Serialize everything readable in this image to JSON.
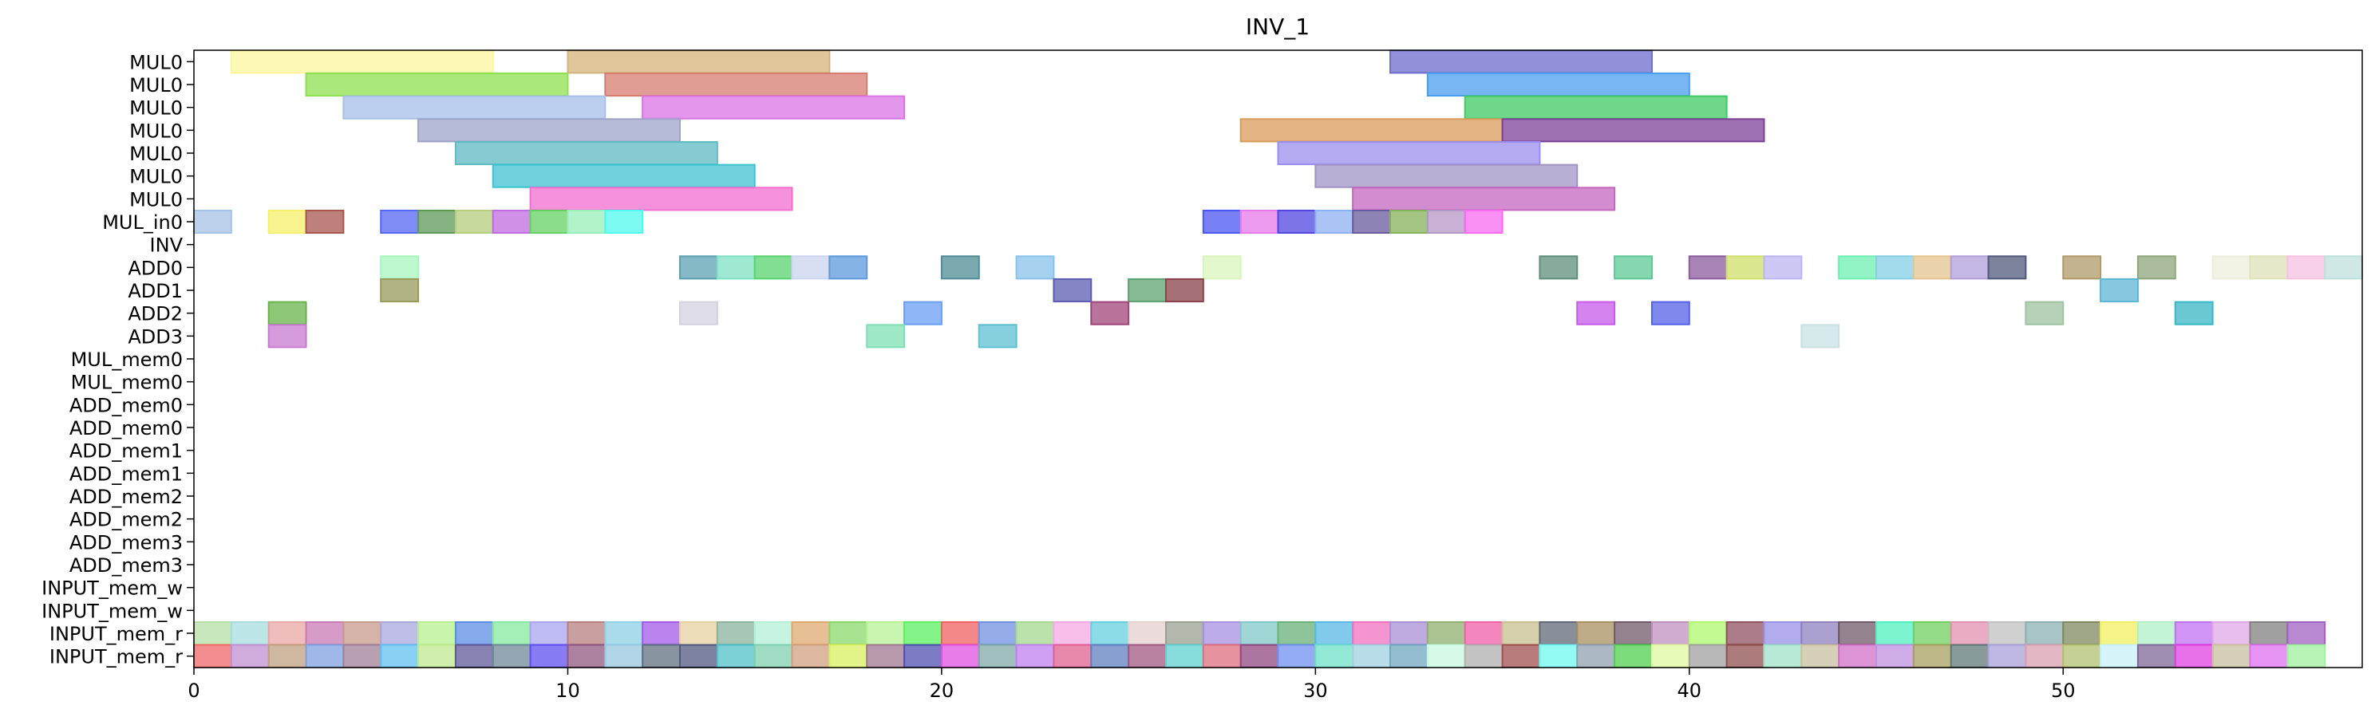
{
  "chart_data": {
    "type": "gantt",
    "title": "INV_1",
    "xlabel": "",
    "ylabel": "",
    "xlim": [
      0,
      58
    ],
    "x_ticks": [
      0,
      10,
      20,
      30,
      40,
      50
    ],
    "grid": false,
    "rows": [
      "MUL0",
      "MUL0",
      "MUL0",
      "MUL0",
      "MUL0",
      "MUL0",
      "MUL0",
      "MUL_in0",
      "INV",
      "ADD0",
      "ADD1",
      "ADD2",
      "ADD3",
      "MUL_mem0",
      "MUL_mem0",
      "ADD_mem0",
      "ADD_mem0",
      "ADD_mem1",
      "ADD_mem1",
      "ADD_mem2",
      "ADD_mem2",
      "ADD_mem3",
      "ADD_mem3",
      "INPUT_mem_w",
      "INPUT_mem_w",
      "INPUT_mem_r",
      "INPUT_mem_r"
    ],
    "tasks": [
      {
        "row": 0,
        "start": 1,
        "end": 8,
        "color": "#fef59e"
      },
      {
        "row": 0,
        "start": 10,
        "end": 17,
        "color": "#d4b37a"
      },
      {
        "row": 0,
        "start": 32,
        "end": 39,
        "color": "#6b6ccc"
      },
      {
        "row": 1,
        "start": 3,
        "end": 10,
        "color": "#8fe04f"
      },
      {
        "row": 1,
        "start": 11,
        "end": 18,
        "color": "#d77b6f"
      },
      {
        "row": 1,
        "start": 33,
        "end": 40,
        "color": "#4a9eee"
      },
      {
        "row": 2,
        "start": 4,
        "end": 11,
        "color": "#a7bfea"
      },
      {
        "row": 2,
        "start": 12,
        "end": 19,
        "color": "#da73e6"
      },
      {
        "row": 2,
        "start": 34,
        "end": 41,
        "color": "#3fca63"
      },
      {
        "row": 3,
        "start": 6,
        "end": 13,
        "color": "#9ea4c9"
      },
      {
        "row": 3,
        "start": 28,
        "end": 35,
        "color": "#d89a5a"
      },
      {
        "row": 3,
        "start": 35,
        "end": 42,
        "color": "#7c4098"
      },
      {
        "row": 4,
        "start": 7,
        "end": 14,
        "color": "#5fbac3"
      },
      {
        "row": 4,
        "start": 29,
        "end": 36,
        "color": "#9b8dee"
      },
      {
        "row": 5,
        "start": 8,
        "end": 15,
        "color": "#3ec1d0"
      },
      {
        "row": 5,
        "start": 30,
        "end": 37,
        "color": "#a193c6"
      },
      {
        "row": 6,
        "start": 9,
        "end": 16,
        "color": "#f36dd0"
      },
      {
        "row": 6,
        "start": 31,
        "end": 38,
        "color": "#c466bf"
      },
      {
        "row": 7,
        "start": 0,
        "end": 1,
        "color": "#a4c2e6"
      },
      {
        "row": 7,
        "start": 2,
        "end": 3,
        "color": "#f7f06a"
      },
      {
        "row": 7,
        "start": 3,
        "end": 4,
        "color": "#a8554f"
      },
      {
        "row": 7,
        "start": 5,
        "end": 6,
        "color": "#5565f3"
      },
      {
        "row": 7,
        "start": 6,
        "end": 7,
        "color": "#5d9857"
      },
      {
        "row": 7,
        "start": 7,
        "end": 8,
        "color": "#b6cc7d"
      },
      {
        "row": 7,
        "start": 8,
        "end": 9,
        "color": "#c06be0"
      },
      {
        "row": 7,
        "start": 9,
        "end": 10,
        "color": "#65d163"
      },
      {
        "row": 7,
        "start": 10,
        "end": 11,
        "color": "#99efb9"
      },
      {
        "row": 7,
        "start": 11,
        "end": 12,
        "color": "#4ff9ee"
      },
      {
        "row": 7,
        "start": 27,
        "end": 28,
        "color": "#4a55f2"
      },
      {
        "row": 7,
        "start": 28,
        "end": 29,
        "color": "#e67ae8"
      },
      {
        "row": 7,
        "start": 29,
        "end": 30,
        "color": "#5045e0"
      },
      {
        "row": 7,
        "start": 30,
        "end": 31,
        "color": "#8eb0f2"
      },
      {
        "row": 7,
        "start": 31,
        "end": 32,
        "color": "#6a5a9e"
      },
      {
        "row": 7,
        "start": 32,
        "end": 33,
        "color": "#86b15a"
      },
      {
        "row": 7,
        "start": 33,
        "end": 34,
        "color": "#b597c6"
      },
      {
        "row": 7,
        "start": 34,
        "end": 35,
        "color": "#f86af0"
      },
      {
        "row": 9,
        "start": 5,
        "end": 6,
        "color": "#a8f5be"
      },
      {
        "row": 9,
        "start": 13,
        "end": 14,
        "color": "#5ba1b1"
      },
      {
        "row": 9,
        "start": 14,
        "end": 15,
        "color": "#7fe1c4"
      },
      {
        "row": 9,
        "start": 15,
        "end": 16,
        "color": "#58d36e"
      },
      {
        "row": 9,
        "start": 16,
        "end": 17,
        "color": "#ccd4ef"
      },
      {
        "row": 9,
        "start": 17,
        "end": 18,
        "color": "#5d9ade"
      },
      {
        "row": 9,
        "start": 20,
        "end": 21,
        "color": "#4f8c96"
      },
      {
        "row": 9,
        "start": 22,
        "end": 23,
        "color": "#88c3ea"
      },
      {
        "row": 9,
        "start": 27,
        "end": 28,
        "color": "#d9f5bb"
      },
      {
        "row": 9,
        "start": 36,
        "end": 37,
        "color": "#5d8f7c"
      },
      {
        "row": 9,
        "start": 38,
        "end": 39,
        "color": "#5ec996"
      },
      {
        "row": 9,
        "start": 40,
        "end": 41,
        "color": "#8b5c9e"
      },
      {
        "row": 9,
        "start": 41,
        "end": 42,
        "color": "#d1df6b"
      },
      {
        "row": 9,
        "start": 42,
        "end": 43,
        "color": "#bcb6f0"
      },
      {
        "row": 9,
        "start": 44,
        "end": 45,
        "color": "#6ef0b2"
      },
      {
        "row": 9,
        "start": 45,
        "end": 46,
        "color": "#86cfe6"
      },
      {
        "row": 9,
        "start": 46,
        "end": 47,
        "color": "#e4c590"
      },
      {
        "row": 9,
        "start": 47,
        "end": 48,
        "color": "#b29fda"
      },
      {
        "row": 9,
        "start": 48,
        "end": 49,
        "color": "#505a7b"
      },
      {
        "row": 9,
        "start": 50,
        "end": 51,
        "color": "#b09a6a"
      },
      {
        "row": 9,
        "start": 52,
        "end": 53,
        "color": "#8fa67c"
      },
      {
        "row": 9,
        "start": 54,
        "end": 55,
        "color": "#eeeedc"
      },
      {
        "row": 9,
        "start": 55,
        "end": 56,
        "color": "#e0e2b8"
      },
      {
        "row": 9,
        "start": 56,
        "end": 57,
        "color": "#f6c2e0"
      },
      {
        "row": 9,
        "start": 57,
        "end": 58,
        "color": "#bfe0dc"
      },
      {
        "row": 10,
        "start": 5,
        "end": 6,
        "color": "#999b5d"
      },
      {
        "row": 10,
        "start": 23,
        "end": 24,
        "color": "#5c5db2"
      },
      {
        "row": 10,
        "start": 25,
        "end": 26,
        "color": "#5ca371"
      },
      {
        "row": 10,
        "start": 26,
        "end": 27,
        "color": "#8a434a"
      },
      {
        "row": 10,
        "start": 51,
        "end": 52,
        "color": "#5db6d6"
      },
      {
        "row": 11,
        "start": 2,
        "end": 3,
        "color": "#67b44a"
      },
      {
        "row": 11,
        "start": 13,
        "end": 14,
        "color": "#d4d1e0"
      },
      {
        "row": 11,
        "start": 19,
        "end": 20,
        "color": "#6a9ef4"
      },
      {
        "row": 11,
        "start": 24,
        "end": 25,
        "color": "#a0457a"
      },
      {
        "row": 11,
        "start": 37,
        "end": 38,
        "color": "#c75ae8"
      },
      {
        "row": 11,
        "start": 39,
        "end": 40,
        "color": "#5460e6"
      },
      {
        "row": 11,
        "start": 49,
        "end": 50,
        "color": "#9fc2a0"
      },
      {
        "row": 11,
        "start": 53,
        "end": 54,
        "color": "#38b7c4"
      },
      {
        "row": 12,
        "start": 2,
        "end": 3,
        "color": "#c87ad0"
      },
      {
        "row": 12,
        "start": 18,
        "end": 19,
        "color": "#7fe0b6"
      },
      {
        "row": 12,
        "start": 21,
        "end": 22,
        "color": "#5ebfd1"
      },
      {
        "row": 12,
        "start": 43,
        "end": 44,
        "color": "#c9e1e3"
      }
    ],
    "row25_colors": [
      "#b5e0a6",
      "#a8dce0",
      "#e9a7a6",
      "#c97ab6",
      "#c89a8c",
      "#a9a8de",
      "#b5f08f",
      "#5c8ee6",
      "#86e8a0",
      "#a9a6f0",
      "#b87f7f",
      "#8ed0e6",
      "#a45ae8",
      "#e6d0a0",
      "#8bb39c",
      "#b3f0d6",
      "#e0a870",
      "#88d86a",
      "#b6f296",
      "#5cf060",
      "#f06060",
      "#7090e0",
      "#a5d890",
      "#f6a8e6",
      "#66d0e0",
      "#e6d0d0",
      "#9aa090",
      "#a690e0",
      "#80c8c8",
      "#68b078",
      "#58b8e6",
      "#f070c0",
      "#a890d6",
      "#90b070",
      "#f060a8",
      "#c8c090",
      "#606878",
      "#a89060",
      "#705868",
      "#c090c0",
      "#b0f870",
      "#905060",
      "#9890e6",
      "#9080c0",
      "#705868",
      "#50f0c0",
      "#70d060",
      "#e090b0",
      "#c0c0c0",
      "#8cb0b0",
      "#808860",
      "#f0f060",
      "#b0f0c8",
      "#c070f0",
      "#e0a8e6",
      "#808080",
      "#a060c0"
    ],
    "row26_colors": [
      "#f06868",
      "#c090d0",
      "#c0a080",
      "#80a0e0",
      "#a08098",
      "#60c0f0",
      "#c0e890",
      "#605898",
      "#708898",
      "#6050f0",
      "#905880",
      "#98c8e0",
      "#607080",
      "#505880",
      "#50c0c8",
      "#80d0b0",
      "#d0a080",
      "#d8f060",
      "#a07890",
      "#5050b0",
      "#e050e0",
      "#80a8a8",
      "#c080f0",
      "#e06090",
      "#6080c0",
      "#a05880",
      "#60d0d0",
      "#e07080",
      "#904880",
      "#7090f0",
      "#70e0c8",
      "#a0d0e0",
      "#70a8c0",
      "#c8f8e0",
      "#b0b0b0",
      "#a05050",
      "#70f8f0",
      "#90a0b0",
      "#50d050",
      "#e0f8a0",
      "#a0a0a0",
      "#905050",
      "#a0e0c8",
      "#c8c0a0",
      "#d070c8",
      "#c090e0",
      "#a8a060",
      "#607878",
      "#a8a0d8",
      "#d8a0b0",
      "#b0c070",
      "#c8f0f8",
      "#806898",
      "#e040e0",
      "#c8c0a0",
      "#e070f0",
      "#a0f0a0"
    ]
  }
}
